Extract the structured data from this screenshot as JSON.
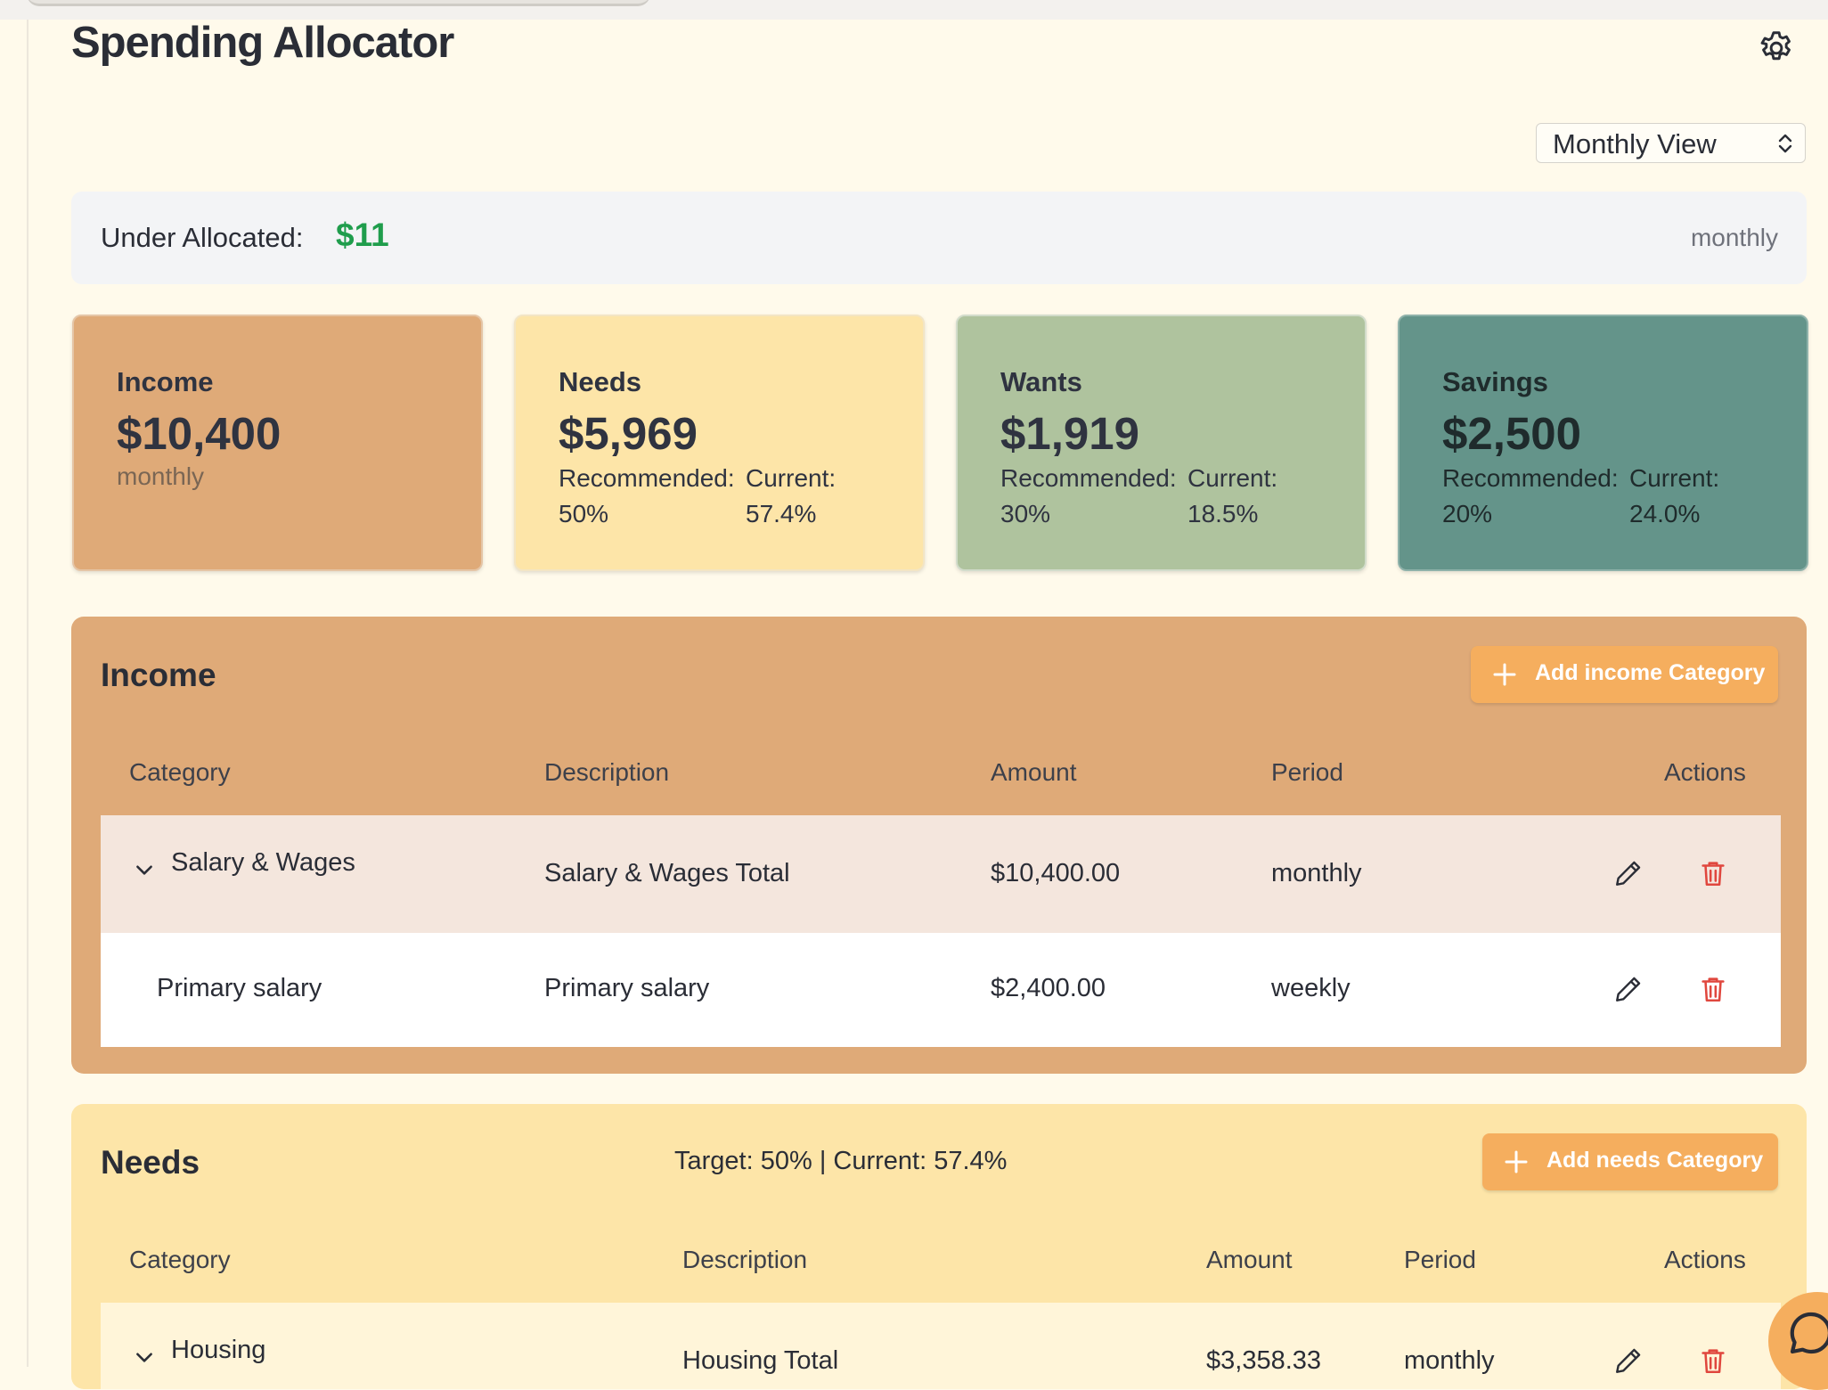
{
  "app": {
    "title": "Spending Allocator"
  },
  "toolbar": {
    "settings_icon": "gear-icon",
    "view_select": "Monthly View"
  },
  "allocation": {
    "label": "Under Allocated:",
    "value": "$11",
    "period": "monthly",
    "value_color": "#1f9d4c"
  },
  "summary_cards": {
    "income": {
      "title": "Income",
      "value": "$10,400",
      "sub": "monthly",
      "color": "#dfaa78"
    },
    "needs": {
      "title": "Needs",
      "value": "$5,969",
      "rec_label": "Recommended:",
      "rec_value": "50%",
      "cur_label": "Current:",
      "cur_value": "57.4%",
      "color": "#fde5a8"
    },
    "wants": {
      "title": "Wants",
      "value": "$1,919",
      "rec_label": "Recommended:",
      "rec_value": "30%",
      "cur_label": "Current:",
      "cur_value": "18.5%",
      "color": "#afc39e"
    },
    "savings": {
      "title": "Savings",
      "value": "$2,500",
      "rec_label": "Recommended:",
      "rec_value": "20%",
      "cur_label": "Current:",
      "cur_value": "24.0%",
      "color": "#64948a"
    }
  },
  "income_section": {
    "title": "Income",
    "add_button": "Add income Category",
    "columns": [
      "Category",
      "Description",
      "Amount",
      "Period",
      "Actions"
    ],
    "rows": [
      {
        "category": "Salary & Wages",
        "description": "Salary & Wages Total",
        "amount": "$10,400.00",
        "period": "monthly"
      },
      {
        "category": "Primary salary",
        "description": "Primary salary",
        "amount": "$2,400.00",
        "period": "weekly"
      }
    ]
  },
  "needs_section": {
    "title": "Needs",
    "target_text": "Target: 50% | Current: 57.4%",
    "add_button": "Add needs Category",
    "columns": [
      "Category",
      "Description",
      "Amount",
      "Period",
      "Actions"
    ],
    "rows": [
      {
        "category": "Housing",
        "description": "Housing Total",
        "amount": "$3,358.33",
        "period": "monthly"
      }
    ]
  },
  "colors": {
    "accent_button": "#f5ae5e",
    "delete": "#e0473e",
    "page_bg": "#fffaeb"
  }
}
